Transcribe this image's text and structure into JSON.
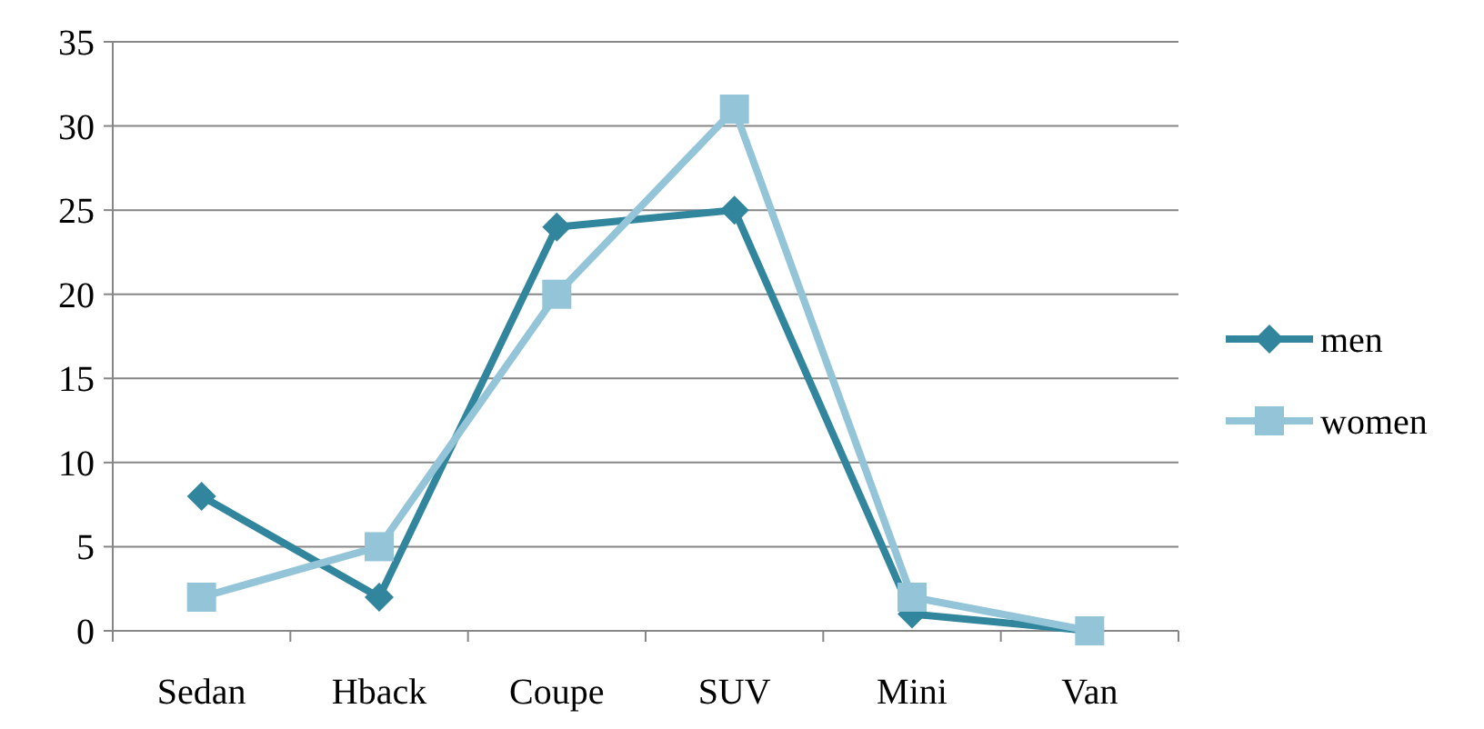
{
  "chart_data": {
    "type": "line",
    "categories": [
      "Sedan",
      "Hback",
      "Coupe",
      "SUV",
      "Mini",
      "Van"
    ],
    "series": [
      {
        "name": "men",
        "color": "#31859c",
        "values": [
          8,
          2,
          24,
          25,
          1,
          0
        ],
        "marker": "diamond"
      },
      {
        "name": "women",
        "color": "#93c4d8",
        "values": [
          2,
          5,
          20,
          31,
          2,
          0
        ],
        "marker": "square"
      }
    ],
    "ylim": [
      0,
      35
    ],
    "yticks": [
      0,
      5,
      10,
      15,
      20,
      25,
      30,
      35
    ],
    "grid": "y",
    "legend": "right",
    "line_style": "solid"
  }
}
